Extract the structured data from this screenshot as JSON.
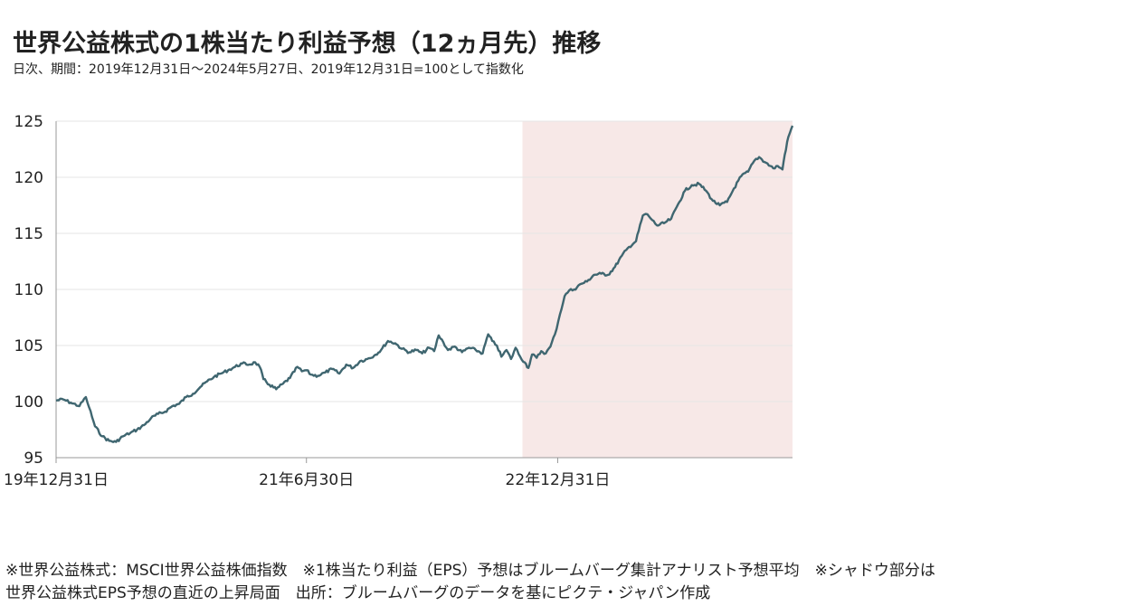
{
  "title": "世界公益株式の1株当たり利益予想（12ヵ月先）推移",
  "subtitle": "日次、期間：2019年12月31日～2024年5月27日、2019年12月31日=100として指数化",
  "notes": {
    "line1": "※世界公益株式：MSCI世界公益株価指数　※1株当たり利益（EPS）予想はブルームバーグ集計アナリスト予想平均　※シャドウ部分は",
    "line2": "世界公益株式EPS予想の直近の上昇局面　出所：ブルームバーグのデータを基にピクテ・ジャパン作成"
  },
  "colors": {
    "line": "#3f6670",
    "shade": "#f7e8e7",
    "grid": "#e6e6e6",
    "axis": "#999999"
  },
  "chart_data": {
    "type": "line",
    "title": "",
    "xlabel": "",
    "ylabel": "",
    "ylim": [
      95,
      125
    ],
    "yticks": [
      "95",
      "100",
      "105",
      "110",
      "115",
      "120",
      "125"
    ],
    "xlim": [
      "2019-12-31",
      "2024-05-27"
    ],
    "xtick_labels": [
      {
        "date": "2019-12-31",
        "label": "19年12月31日"
      },
      {
        "date": "2021-06-30",
        "label": "21年6月30日"
      },
      {
        "date": "2022-12-31",
        "label": "22年12月31日"
      }
    ],
    "shaded_region": {
      "start": "2022-10-15",
      "end": "2024-05-27"
    },
    "grid": "horizontal",
    "legend": "none",
    "series": [
      {
        "points": [
          [
            "2019-12-31",
            100.1
          ],
          [
            "2020-01-15",
            100.2
          ],
          [
            "2020-02-01",
            99.9
          ],
          [
            "2020-02-20",
            99.6
          ],
          [
            "2020-03-05",
            100.4
          ],
          [
            "2020-03-12",
            99.5
          ],
          [
            "2020-03-25",
            97.8
          ],
          [
            "2020-04-10",
            96.9
          ],
          [
            "2020-04-25",
            96.5
          ],
          [
            "2020-05-10",
            96.4
          ],
          [
            "2020-05-25",
            96.9
          ],
          [
            "2020-06-10",
            97.2
          ],
          [
            "2020-06-25",
            97.5
          ],
          [
            "2020-07-10",
            97.9
          ],
          [
            "2020-07-25",
            98.5
          ],
          [
            "2020-08-10",
            98.9
          ],
          [
            "2020-08-25",
            99.1
          ],
          [
            "2020-09-10",
            99.6
          ],
          [
            "2020-09-25",
            99.8
          ],
          [
            "2020-10-10",
            100.4
          ],
          [
            "2020-10-25",
            100.7
          ],
          [
            "2020-11-10",
            101.3
          ],
          [
            "2020-11-25",
            101.8
          ],
          [
            "2020-12-10",
            102.2
          ],
          [
            "2020-12-25",
            102.5
          ],
          [
            "2021-01-10",
            102.8
          ],
          [
            "2021-01-25",
            103.1
          ],
          [
            "2021-02-10",
            103.4
          ],
          [
            "2021-02-25",
            103.3
          ],
          [
            "2021-03-10",
            103.5
          ],
          [
            "2021-03-20",
            103.1
          ],
          [
            "2021-03-28",
            102.0
          ],
          [
            "2021-04-10",
            101.5
          ],
          [
            "2021-04-25",
            101.1
          ],
          [
            "2021-05-10",
            101.6
          ],
          [
            "2021-05-25",
            102.1
          ],
          [
            "2021-06-10",
            103.1
          ],
          [
            "2021-06-20",
            102.7
          ],
          [
            "2021-06-30",
            102.8
          ],
          [
            "2021-07-10",
            102.4
          ],
          [
            "2021-07-25",
            102.3
          ],
          [
            "2021-08-10",
            102.6
          ],
          [
            "2021-08-25",
            102.9
          ],
          [
            "2021-09-10",
            102.5
          ],
          [
            "2021-09-25",
            103.3
          ],
          [
            "2021-10-10",
            103.0
          ],
          [
            "2021-10-25",
            103.6
          ],
          [
            "2021-11-10",
            103.8
          ],
          [
            "2021-11-25",
            104.1
          ],
          [
            "2021-12-10",
            104.6
          ],
          [
            "2021-12-25",
            105.4
          ],
          [
            "2022-01-10",
            105.2
          ],
          [
            "2022-01-25",
            104.7
          ],
          [
            "2022-02-10",
            104.4
          ],
          [
            "2022-02-25",
            104.6
          ],
          [
            "2022-03-10",
            104.3
          ],
          [
            "2022-03-25",
            104.8
          ],
          [
            "2022-04-05",
            104.5
          ],
          [
            "2022-04-15",
            105.9
          ],
          [
            "2022-04-25",
            105.3
          ],
          [
            "2022-05-05",
            104.6
          ],
          [
            "2022-05-20",
            104.9
          ],
          [
            "2022-06-05",
            104.4
          ],
          [
            "2022-06-20",
            104.8
          ],
          [
            "2022-07-05",
            104.6
          ],
          [
            "2022-07-20",
            104.3
          ],
          [
            "2022-08-01",
            106.0
          ],
          [
            "2022-08-10",
            105.4
          ],
          [
            "2022-08-20",
            105.0
          ],
          [
            "2022-08-30",
            104.0
          ],
          [
            "2022-09-10",
            104.6
          ],
          [
            "2022-09-20",
            103.8
          ],
          [
            "2022-09-30",
            104.8
          ],
          [
            "2022-10-10",
            104.0
          ],
          [
            "2022-10-20",
            103.5
          ],
          [
            "2022-10-28",
            103.0
          ],
          [
            "2022-11-05",
            104.2
          ],
          [
            "2022-11-15",
            103.9
          ],
          [
            "2022-11-25",
            104.5
          ],
          [
            "2022-12-05",
            104.3
          ],
          [
            "2022-12-15",
            104.9
          ],
          [
            "2022-12-25",
            106.0
          ],
          [
            "2023-01-05",
            107.8
          ],
          [
            "2023-01-15",
            109.4
          ],
          [
            "2023-01-25",
            109.9
          ],
          [
            "2023-02-05",
            110.0
          ],
          [
            "2023-02-20",
            110.5
          ],
          [
            "2023-03-05",
            110.7
          ],
          [
            "2023-03-20",
            111.3
          ],
          [
            "2023-04-05",
            111.4
          ],
          [
            "2023-04-20",
            111.3
          ],
          [
            "2023-05-05",
            112.0
          ],
          [
            "2023-05-20",
            113.0
          ],
          [
            "2023-06-05",
            113.8
          ],
          [
            "2023-06-20",
            114.3
          ],
          [
            "2023-07-05",
            116.6
          ],
          [
            "2023-07-15",
            116.7
          ],
          [
            "2023-07-25",
            116.2
          ],
          [
            "2023-08-05",
            115.7
          ],
          [
            "2023-08-20",
            115.9
          ],
          [
            "2023-09-05",
            116.3
          ],
          [
            "2023-09-20",
            117.6
          ],
          [
            "2023-10-05",
            118.8
          ],
          [
            "2023-10-20",
            119.3
          ],
          [
            "2023-11-05",
            119.4
          ],
          [
            "2023-11-20",
            118.8
          ],
          [
            "2023-12-05",
            117.9
          ],
          [
            "2023-12-20",
            117.5
          ],
          [
            "2024-01-05",
            117.8
          ],
          [
            "2024-01-20",
            119.0
          ],
          [
            "2024-02-05",
            120.1
          ],
          [
            "2024-02-20",
            120.5
          ],
          [
            "2024-03-05",
            121.5
          ],
          [
            "2024-03-15",
            121.8
          ],
          [
            "2024-03-30",
            121.3
          ],
          [
            "2024-04-15",
            120.8
          ],
          [
            "2024-04-25",
            121.0
          ],
          [
            "2024-05-05",
            120.7
          ],
          [
            "2024-05-10",
            122.0
          ],
          [
            "2024-05-18",
            123.6
          ],
          [
            "2024-05-27",
            124.6
          ]
        ]
      }
    ]
  }
}
